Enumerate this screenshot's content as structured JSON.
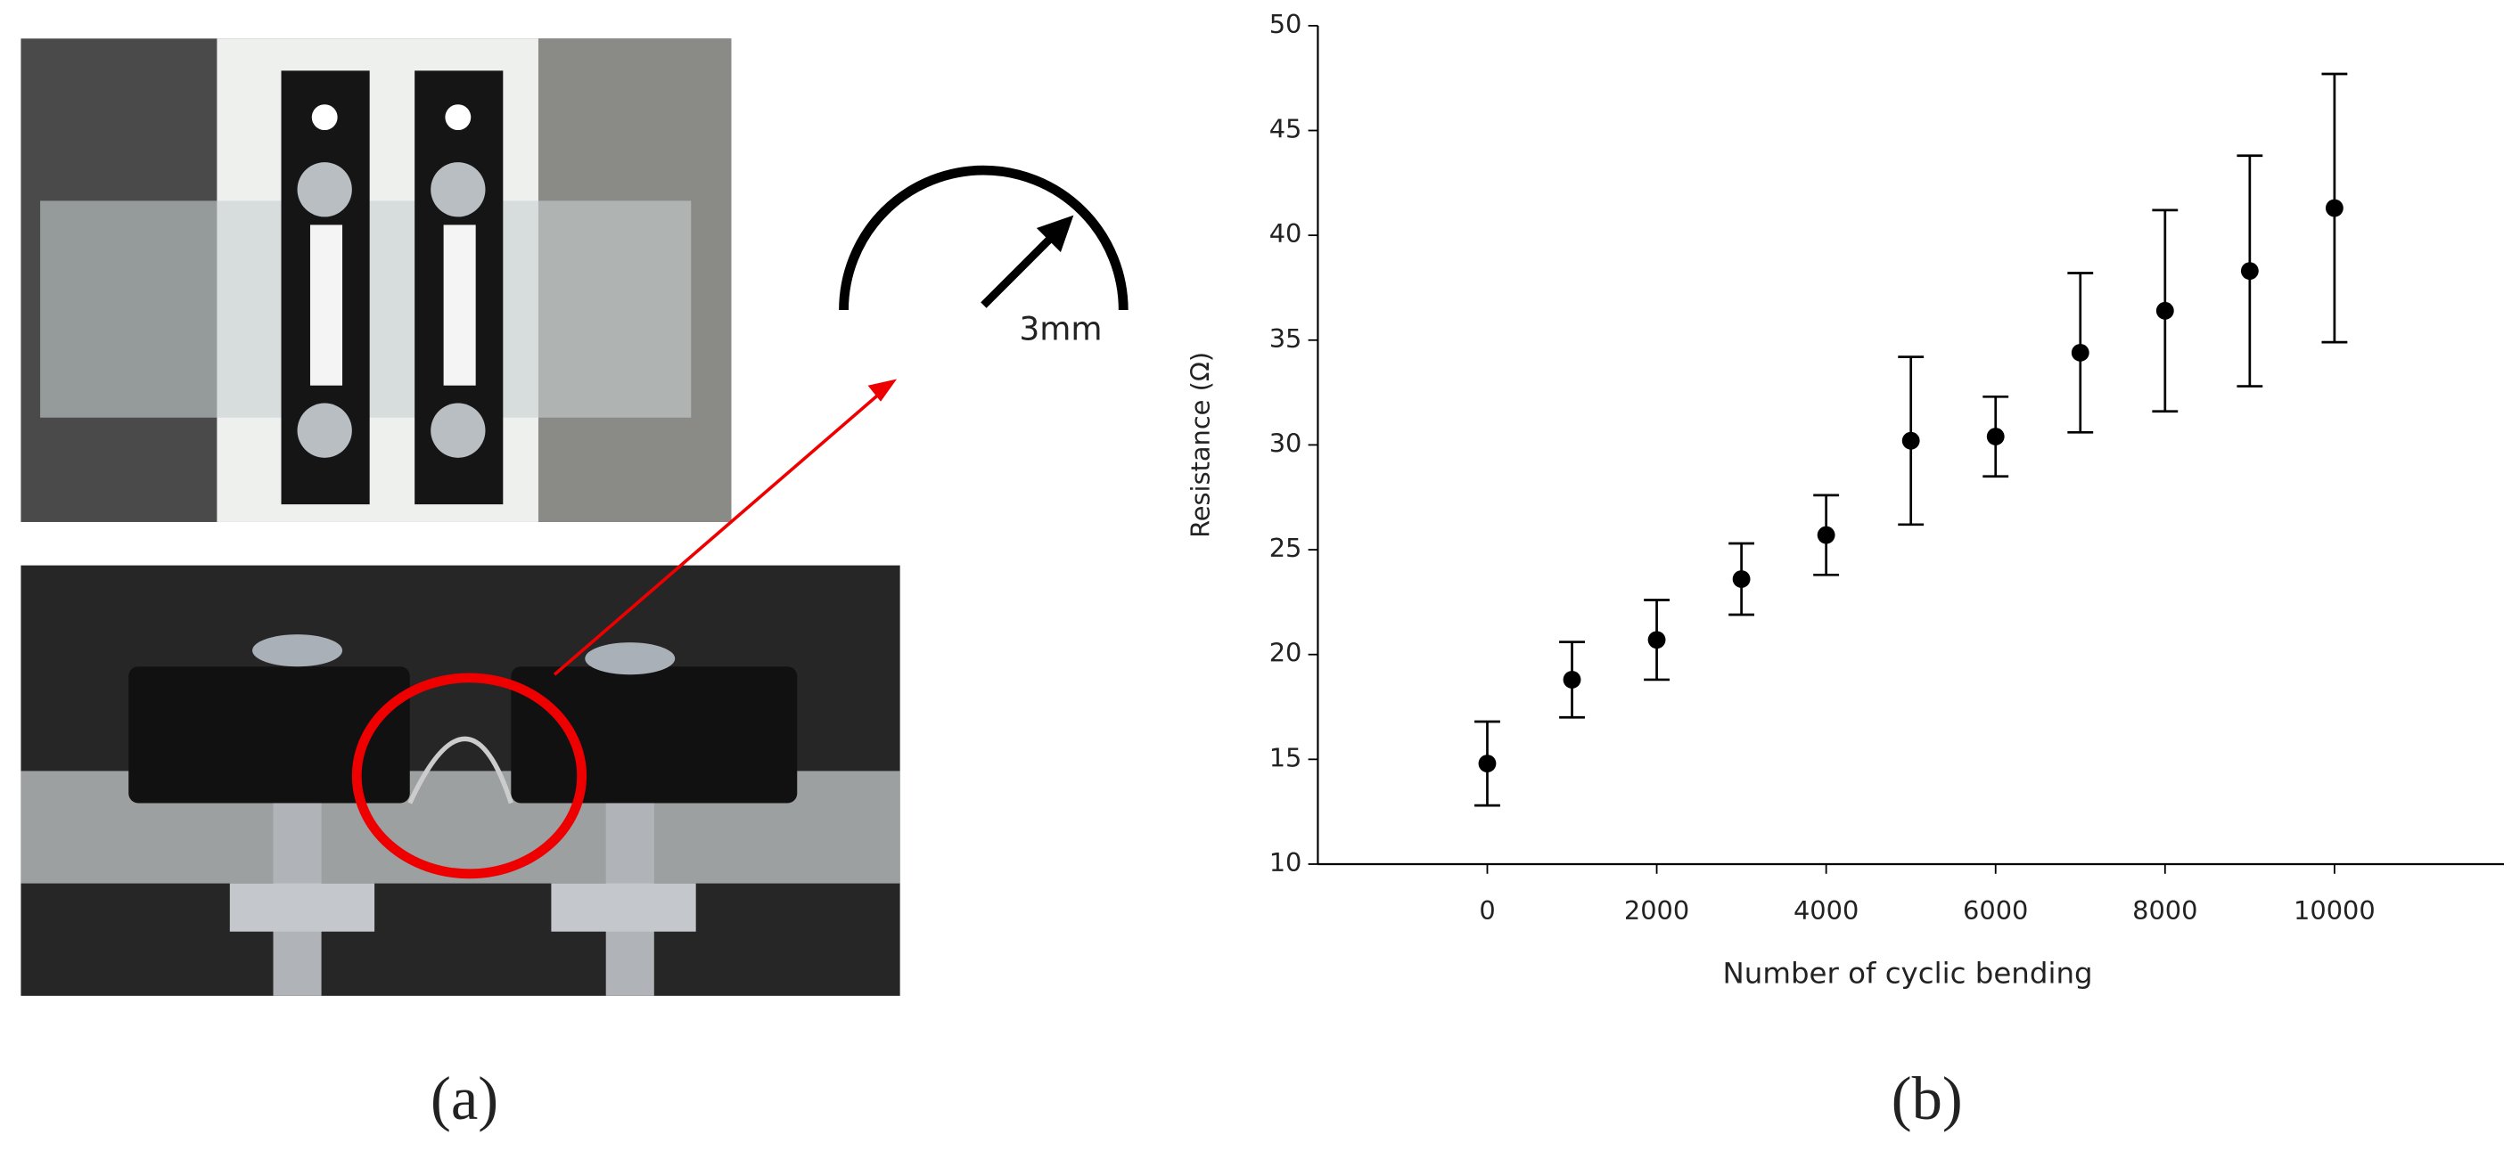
{
  "panels": {
    "a": {
      "label": "(a)",
      "annotation": "3mm"
    },
    "b": {
      "label": "(b)"
    }
  },
  "chart_data": {
    "type": "scatter",
    "x_label": "Number of cyclic bending",
    "y_label": "Resistance (Ω)",
    "x": [
      0,
      1000,
      2000,
      3000,
      4000,
      5000,
      6000,
      7000,
      8000,
      9000,
      10000
    ],
    "series": [
      {
        "color": "#000000",
        "values": [
          14.8,
          18.8,
          20.7,
          23.6,
          25.7,
          30.2,
          30.4,
          34.4,
          36.4,
          38.3,
          41.3
        ],
        "errors": [
          2.0,
          1.8,
          1.9,
          1.7,
          1.9,
          4.0,
          1.9,
          3.8,
          4.8,
          5.5,
          6.4
        ]
      }
    ],
    "xlim": [
      -2000,
      12000
    ],
    "xticks": [
      0,
      2000,
      4000,
      6000,
      8000,
      10000
    ],
    "ylim": [
      10,
      50
    ],
    "yticks": [
      10,
      15,
      20,
      25,
      30,
      35,
      40,
      45,
      50
    ]
  }
}
